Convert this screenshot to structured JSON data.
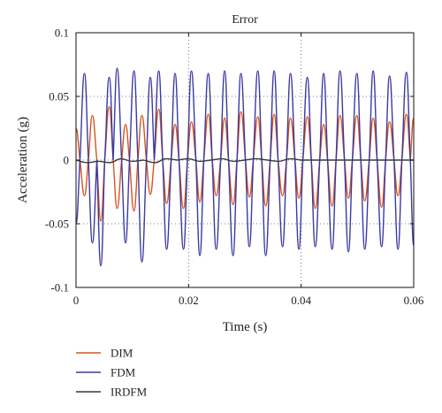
{
  "chart_data": {
    "type": "line",
    "title": "Error",
    "xlabel": "Time (s)",
    "ylabel": "Acceleration (g)",
    "xlim": [
      0,
      0.06
    ],
    "ylim": [
      -0.1,
      0.1
    ],
    "x_ticks": [
      0,
      0.02,
      0.04,
      0.06
    ],
    "x_tick_labels": [
      "0",
      "0.02",
      "0.04",
      "0.06"
    ],
    "y_ticks": [
      -0.1,
      -0.05,
      0,
      0.05,
      0.1
    ],
    "y_tick_labels": [
      "-0.1",
      "-0.05",
      "0",
      "0.05",
      "0.1"
    ],
    "grid": "dotted",
    "legend_placement": "below",
    "series": [
      {
        "name": "DIM",
        "color": "#d9541f",
        "x": [
          0,
          0.0007,
          0.0015,
          0.0022,
          0.0029,
          0.0037,
          0.0044,
          0.0051,
          0.0059,
          0.0066,
          0.0073,
          0.0081,
          0.0088,
          0.0095,
          0.0103,
          0.011,
          0.0117,
          0.0125,
          0.0132,
          0.0139,
          0.0147,
          0.0154,
          0.0161,
          0.0169,
          0.0176,
          0.0183,
          0.0191,
          0.0198,
          0.0205,
          0.0213,
          0.022,
          0.0227,
          0.0235,
          0.0242,
          0.0249,
          0.0257,
          0.0264,
          0.0271,
          0.0279,
          0.0286,
          0.0293,
          0.0301,
          0.0308,
          0.0315,
          0.0323,
          0.033,
          0.0337,
          0.0345,
          0.0352,
          0.0359,
          0.0367,
          0.0374,
          0.0381,
          0.0389,
          0.0396,
          0.0403,
          0.0411,
          0.0418,
          0.0425,
          0.0433,
          0.044,
          0.0447,
          0.0455,
          0.0462,
          0.0469,
          0.0477,
          0.0484,
          0.0491,
          0.0499,
          0.0506,
          0.0513,
          0.0521,
          0.0528,
          0.0535,
          0.0543,
          0.055,
          0.0557,
          0.0565,
          0.0572,
          0.0579,
          0.0587,
          0.0594,
          0.06
        ],
        "y": [
          0.025,
          0.0,
          -0.028,
          0.0,
          0.035,
          0.0,
          -0.048,
          0.0,
          0.042,
          0.0,
          -0.038,
          0.0,
          0.028,
          0.0,
          -0.04,
          0.0,
          0.035,
          0.0,
          -0.027,
          0.0,
          0.04,
          0.0,
          -0.034,
          0.0,
          0.028,
          0.0,
          -0.038,
          0.0,
          0.03,
          0.0,
          -0.033,
          0.0,
          0.036,
          0.0,
          -0.028,
          0.0,
          0.033,
          0.0,
          -0.035,
          0.0,
          0.038,
          0.0,
          -0.029,
          0.0,
          0.034,
          0.0,
          -0.036,
          0.0,
          0.036,
          0.0,
          -0.028,
          0.0,
          0.033,
          0.0,
          -0.03,
          0.0,
          0.034,
          0.0,
          -0.038,
          0.0,
          0.028,
          0.0,
          -0.036,
          0.0,
          0.035,
          0.0,
          -0.03,
          0.0,
          0.035,
          0.0,
          -0.032,
          0.0,
          0.033,
          0.0,
          -0.037,
          0.0,
          0.03,
          0.0,
          -0.028,
          0.0,
          0.036,
          0.0,
          0.033
        ]
      },
      {
        "name": "FDM",
        "color": "#3a3aa3",
        "x": [
          0,
          0.0007,
          0.0015,
          0.0022,
          0.0029,
          0.0037,
          0.0044,
          0.0051,
          0.0059,
          0.0066,
          0.0073,
          0.0081,
          0.0088,
          0.0095,
          0.0103,
          0.011,
          0.0117,
          0.0125,
          0.0132,
          0.0139,
          0.0147,
          0.0154,
          0.0161,
          0.0169,
          0.0176,
          0.0183,
          0.0191,
          0.0198,
          0.0205,
          0.0213,
          0.022,
          0.0227,
          0.0235,
          0.0242,
          0.0249,
          0.0257,
          0.0264,
          0.0271,
          0.0279,
          0.0286,
          0.0293,
          0.0301,
          0.0308,
          0.0315,
          0.0323,
          0.033,
          0.0337,
          0.0345,
          0.0352,
          0.0359,
          0.0367,
          0.0374,
          0.0381,
          0.0389,
          0.0396,
          0.0403,
          0.0411,
          0.0418,
          0.0425,
          0.0433,
          0.044,
          0.0447,
          0.0455,
          0.0462,
          0.0469,
          0.0477,
          0.0484,
          0.0491,
          0.0499,
          0.0506,
          0.0513,
          0.0521,
          0.0528,
          0.0535,
          0.0543,
          0.055,
          0.0557,
          0.0565,
          0.0572,
          0.0579,
          0.0587,
          0.0594,
          0.06
        ],
        "y": [
          -0.05,
          0.0,
          0.068,
          0.0,
          -0.065,
          0.0,
          -0.083,
          0.0,
          0.065,
          0.0,
          0.072,
          0.0,
          -0.065,
          0.0,
          0.07,
          0.0,
          -0.08,
          0.0,
          0.065,
          0.0,
          0.07,
          0.0,
          -0.07,
          0.0,
          0.068,
          0.0,
          -0.07,
          0.0,
          0.07,
          0.0,
          -0.075,
          0.0,
          0.068,
          0.0,
          -0.07,
          0.0,
          0.07,
          0.0,
          -0.075,
          0.0,
          0.068,
          0.0,
          -0.068,
          0.0,
          0.07,
          0.0,
          -0.075,
          0.0,
          0.07,
          0.0,
          -0.068,
          0.0,
          0.068,
          0.0,
          -0.07,
          0.0,
          0.065,
          0.0,
          -0.068,
          0.0,
          0.068,
          0.0,
          -0.07,
          0.0,
          0.07,
          0.0,
          -0.072,
          0.0,
          0.068,
          0.0,
          -0.07,
          0.0,
          0.07,
          0.0,
          -0.068,
          0.0,
          0.066,
          0.0,
          -0.07,
          0.0,
          0.069,
          0.0,
          -0.067
        ]
      },
      {
        "name": "IRDFM",
        "color": "#3a3a3a",
        "x": [
          0,
          0.002,
          0.004,
          0.006,
          0.008,
          0.01,
          0.012,
          0.014,
          0.016,
          0.018,
          0.02,
          0.022,
          0.024,
          0.026,
          0.028,
          0.03,
          0.032,
          0.034,
          0.036,
          0.038,
          0.04,
          0.042,
          0.044,
          0.046,
          0.048,
          0.05,
          0.052,
          0.054,
          0.056,
          0.058,
          0.06
        ],
        "y": [
          0.0,
          -0.002,
          -0.001,
          -0.002,
          0.001,
          -0.001,
          0.0,
          -0.002,
          0.001,
          0.0,
          0.001,
          -0.001,
          0.0,
          0.001,
          -0.001,
          0.0,
          0.001,
          0.0,
          -0.001,
          0.001,
          0.0,
          0.0,
          0.0,
          0.0,
          0.0,
          0.0,
          0.0,
          0.0,
          0.0,
          0.0,
          0.0
        ]
      }
    ]
  }
}
